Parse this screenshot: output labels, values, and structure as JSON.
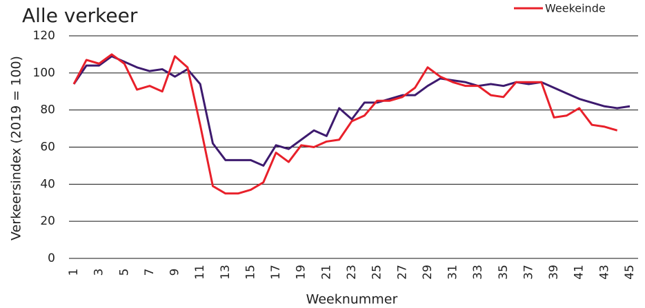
{
  "chart_data": {
    "type": "line",
    "title": "Alle verkeer",
    "x_label": "Weeknummer",
    "y_label": "Verkeersindex (2019 = 100)",
    "categories": [
      "1",
      null,
      "3",
      null,
      "5",
      null,
      "7",
      null,
      "9",
      null,
      "11",
      null,
      "13",
      null,
      "15",
      null,
      "17",
      null,
      "19",
      null,
      "21",
      null,
      "23",
      null,
      "25",
      null,
      "27",
      null,
      "29",
      null,
      "31",
      null,
      "33",
      null,
      "35",
      null,
      "37",
      null,
      "39",
      null,
      "41",
      null,
      "43",
      null,
      "45"
    ],
    "series": [
      {
        "color": "#3d1a6e",
        "values": [
          94,
          104,
          104,
          109,
          106,
          103,
          101,
          102,
          98,
          102,
          94,
          62,
          53,
          53,
          53,
          50,
          61,
          59,
          64,
          69,
          66,
          81,
          75,
          84,
          84,
          86,
          88,
          88,
          93,
          97,
          96,
          95,
          93,
          94,
          93,
          95,
          94,
          95,
          92,
          89,
          86,
          84,
          82,
          81,
          82
        ]
      },
      {
        "name": "Weekeinde",
        "color": "#e8202a",
        "values": [
          94,
          107,
          105,
          110,
          105,
          91,
          93,
          90,
          109,
          103,
          72,
          39,
          35,
          35,
          37,
          41,
          57,
          52,
          61,
          60,
          63,
          64,
          74,
          77,
          85,
          85,
          87,
          92,
          103,
          98,
          95,
          93,
          93,
          88,
          87,
          95,
          95,
          95,
          76,
          77,
          81,
          72,
          71,
          69,
          null
        ]
      }
    ],
    "ylim": [
      0,
      120
    ],
    "yticks": [
      0,
      20,
      40,
      60,
      80,
      100,
      120
    ],
    "grid": true,
    "legend": "top-right"
  }
}
